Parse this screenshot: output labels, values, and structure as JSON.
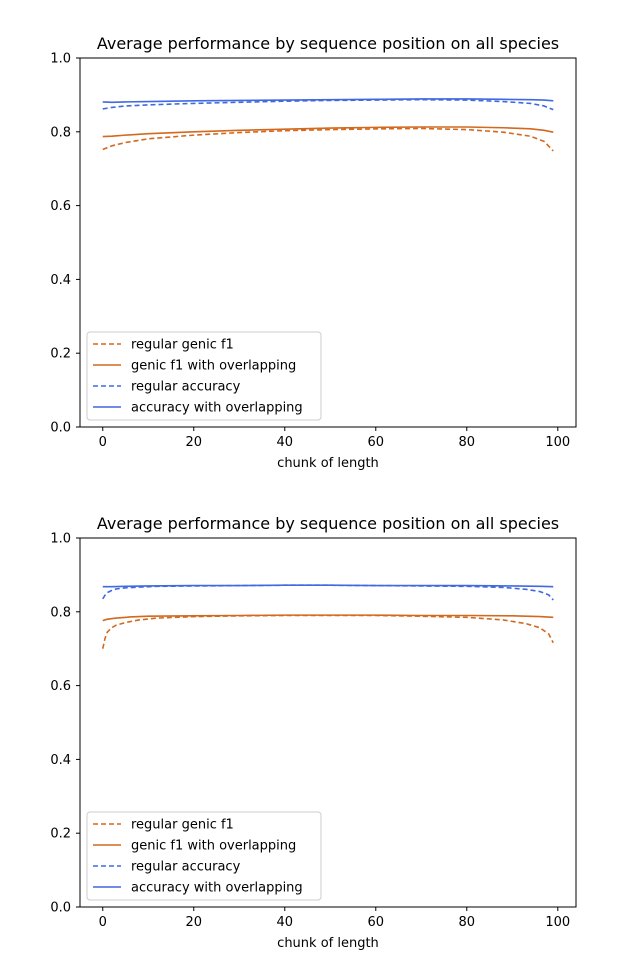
{
  "colors": {
    "genic": "#d2691e",
    "accuracy": "#4169e1"
  },
  "chart_data": [
    {
      "type": "line",
      "title": "Average performance by sequence position on all species",
      "xlabel": "chunk of length",
      "ylabel": "",
      "xlim": [
        -5,
        104
      ],
      "ylim": [
        0.0,
        1.0
      ],
      "xticks": [
        "0",
        "20",
        "40",
        "60",
        "80",
        "100"
      ],
      "yticks": [
        "0.0",
        "0.2",
        "0.4",
        "0.6",
        "0.8",
        "1.0"
      ],
      "grid": false,
      "legend_position": "lower-left",
      "series": [
        {
          "name": "regular genic f1",
          "style": "dashed",
          "color": "#d2691e",
          "x": [
            0,
            2,
            5,
            10,
            20,
            30,
            40,
            50,
            60,
            70,
            80,
            88,
            94,
            97,
            99
          ],
          "y": [
            0.752,
            0.762,
            0.771,
            0.781,
            0.791,
            0.798,
            0.803,
            0.806,
            0.808,
            0.809,
            0.806,
            0.799,
            0.788,
            0.774,
            0.748
          ]
        },
        {
          "name": "genic f1 with overlapping",
          "style": "solid",
          "color": "#d2691e",
          "x": [
            0,
            2,
            5,
            10,
            20,
            30,
            40,
            50,
            60,
            70,
            80,
            88,
            94,
            97,
            99
          ],
          "y": [
            0.787,
            0.788,
            0.791,
            0.795,
            0.8,
            0.804,
            0.807,
            0.81,
            0.812,
            0.813,
            0.813,
            0.811,
            0.808,
            0.804,
            0.799
          ]
        },
        {
          "name": "regular accuracy",
          "style": "dashed",
          "color": "#4169e1",
          "x": [
            0,
            2,
            5,
            10,
            20,
            30,
            40,
            50,
            60,
            70,
            80,
            88,
            94,
            97,
            99
          ],
          "y": [
            0.862,
            0.866,
            0.87,
            0.873,
            0.877,
            0.88,
            0.883,
            0.885,
            0.886,
            0.887,
            0.886,
            0.882,
            0.877,
            0.87,
            0.86
          ]
        },
        {
          "name": "accuracy with overlapping",
          "style": "solid",
          "color": "#4169e1",
          "x": [
            0,
            2,
            5,
            10,
            20,
            30,
            40,
            50,
            60,
            70,
            80,
            88,
            94,
            97,
            99
          ],
          "y": [
            0.881,
            0.88,
            0.881,
            0.882,
            0.884,
            0.885,
            0.886,
            0.887,
            0.888,
            0.889,
            0.889,
            0.888,
            0.887,
            0.886,
            0.884
          ]
        }
      ]
    },
    {
      "type": "line",
      "title": "Average performance by sequence position on all species",
      "xlabel": "chunk of length",
      "ylabel": "",
      "xlim": [
        -5,
        104
      ],
      "ylim": [
        0.0,
        1.0
      ],
      "xticks": [
        "0",
        "20",
        "40",
        "60",
        "80",
        "100"
      ],
      "yticks": [
        "0.0",
        "0.2",
        "0.4",
        "0.6",
        "0.8",
        "1.0"
      ],
      "grid": false,
      "legend_position": "lower-left",
      "series": [
        {
          "name": "regular genic f1",
          "style": "dashed",
          "color": "#d2691e",
          "x": [
            0,
            0.5,
            1,
            2,
            3,
            5,
            8,
            12,
            20,
            30,
            40,
            50,
            60,
            70,
            80,
            88,
            93,
            96,
            98,
            99
          ],
          "y": [
            0.7,
            0.728,
            0.745,
            0.757,
            0.764,
            0.771,
            0.778,
            0.783,
            0.787,
            0.789,
            0.79,
            0.79,
            0.79,
            0.788,
            0.785,
            0.778,
            0.768,
            0.757,
            0.74,
            0.716
          ]
        },
        {
          "name": "genic f1 with overlapping",
          "style": "solid",
          "color": "#d2691e",
          "x": [
            0,
            1,
            3,
            6,
            10,
            20,
            30,
            40,
            50,
            60,
            70,
            80,
            90,
            96,
            99
          ],
          "y": [
            0.776,
            0.78,
            0.783,
            0.786,
            0.788,
            0.789,
            0.79,
            0.791,
            0.791,
            0.791,
            0.79,
            0.79,
            0.789,
            0.787,
            0.785
          ]
        },
        {
          "name": "regular accuracy",
          "style": "dashed",
          "color": "#4169e1",
          "x": [
            0,
            0.5,
            1,
            2,
            3,
            5,
            8,
            12,
            20,
            30,
            40,
            50,
            60,
            70,
            80,
            88,
            93,
            96,
            98,
            99
          ],
          "y": [
            0.835,
            0.845,
            0.852,
            0.858,
            0.862,
            0.865,
            0.867,
            0.869,
            0.87,
            0.871,
            0.872,
            0.872,
            0.871,
            0.87,
            0.869,
            0.866,
            0.861,
            0.855,
            0.846,
            0.832
          ]
        },
        {
          "name": "accuracy with overlapping",
          "style": "solid",
          "color": "#4169e1",
          "x": [
            0,
            2,
            5,
            10,
            20,
            30,
            40,
            50,
            60,
            70,
            80,
            90,
            96,
            99
          ],
          "y": [
            0.868,
            0.868,
            0.869,
            0.87,
            0.871,
            0.871,
            0.872,
            0.872,
            0.871,
            0.871,
            0.871,
            0.87,
            0.869,
            0.868
          ]
        }
      ]
    }
  ]
}
